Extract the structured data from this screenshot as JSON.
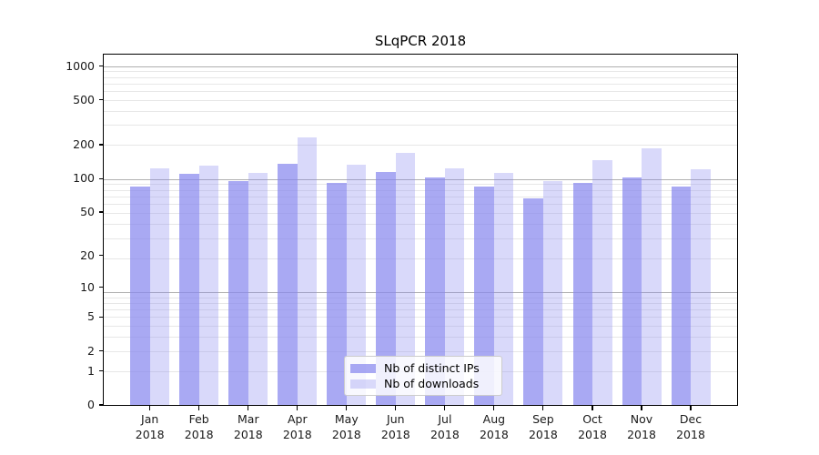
{
  "title": "SLqPCR 2018",
  "chart_data": {
    "type": "bar",
    "title": "SLqPCR 2018",
    "categories": [
      "Jan 2018",
      "Feb 2018",
      "Mar 2018",
      "Apr 2018",
      "May 2018",
      "Jun 2018",
      "Jul 2018",
      "Aug 2018",
      "Sep 2018",
      "Oct 2018",
      "Nov 2018",
      "Dec 2018"
    ],
    "series": [
      {
        "name": "Nb of distinct IPs",
        "color": "rgba(136,136,238,0.72)",
        "values": [
          85,
          110,
          94,
          136,
          92,
          114,
          103,
          84,
          66,
          92,
          102,
          85
        ]
      },
      {
        "name": "Nb of downloads",
        "color": "rgba(136,136,238,0.32)",
        "values": [
          123,
          131,
          113,
          233,
          134,
          169,
          123,
          112,
          95,
          147,
          185,
          122
        ]
      }
    ],
    "xlabel": "",
    "ylabel": "",
    "y_scale": "log10(value+1)",
    "y_ticks": [
      0,
      1,
      2,
      5,
      10,
      20,
      50,
      100,
      200,
      500,
      1000
    ],
    "ylim": [
      0,
      1260
    ],
    "grid": {
      "orientation": "horizontal",
      "minor_color": "#e7e7e7",
      "major_color": "#b0b0b0"
    },
    "legend_position": "lower center"
  }
}
